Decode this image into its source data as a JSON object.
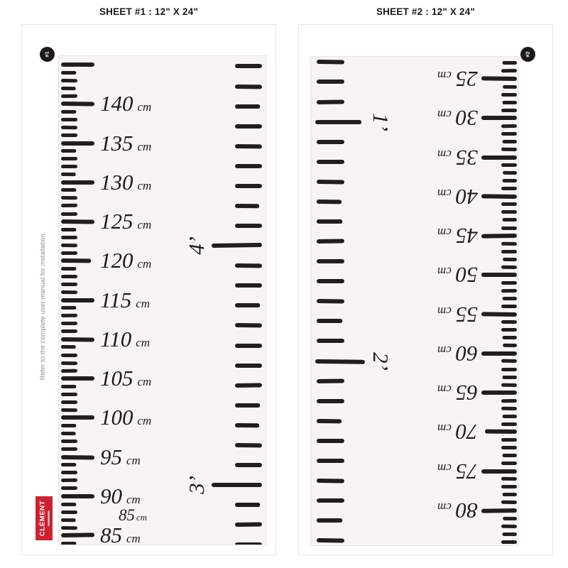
{
  "headers": {
    "sheet1": "SHEET #1 : 12\" X 24\"",
    "sheet2": "SHEET #2 : 12\" X 24\""
  },
  "colors": {
    "tick": "#211f1e",
    "logo_red": "#ce2130",
    "note_gray": "#8b8b8b",
    "strip_bg": "#f7f5f3",
    "strip_border": "#f1e1e1"
  },
  "sheet1": {
    "badge_label": "#1",
    "side_note": "Refer to the complete user manual for installation.",
    "logo_text": "CLÉMENT",
    "unit": "cm",
    "cm_labels": [
      140,
      135,
      130,
      125,
      120,
      115,
      110,
      105,
      100,
      95,
      90,
      85
    ],
    "extra_label": {
      "number": "85",
      "unit": "cm"
    },
    "foot_marks": [
      {
        "label": "4’",
        "inches": 48
      },
      {
        "label": "3’",
        "inches": 36
      }
    ],
    "cm_tick_range": [
      84,
      145
    ],
    "inch_tick_range": [
      32,
      57
    ]
  },
  "sheet2": {
    "badge_label": "#2",
    "unit": "cm",
    "cm_labels": [
      25,
      30,
      35,
      40,
      45,
      50,
      55,
      60,
      65,
      70,
      75,
      80
    ],
    "foot_marks": [
      {
        "label": "1’",
        "inches": 12
      },
      {
        "label": "2’",
        "inches": 24
      }
    ],
    "cm_tick_range": [
      23,
      84
    ],
    "inch_tick_range": [
      9,
      33
    ]
  }
}
